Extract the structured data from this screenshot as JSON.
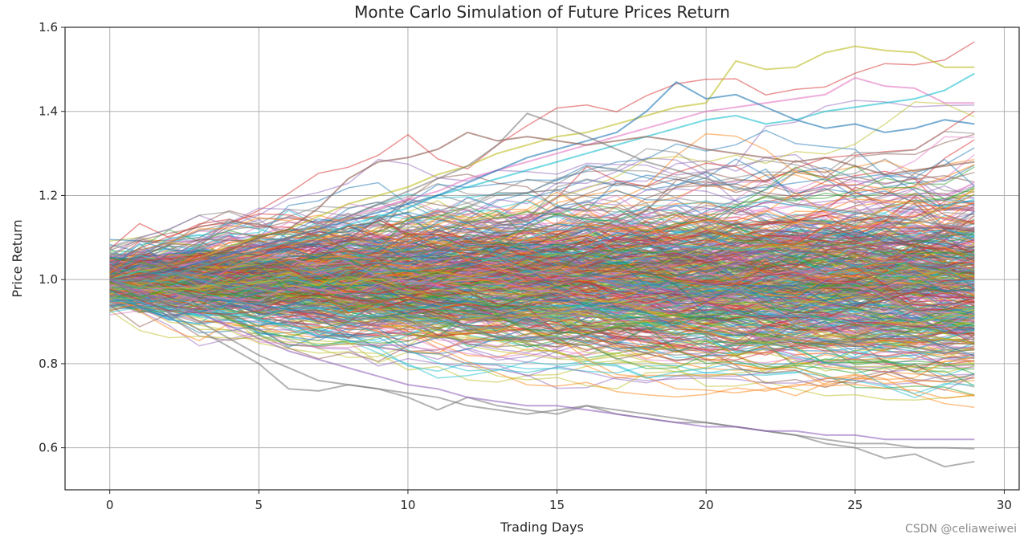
{
  "chart_data": {
    "type": "line",
    "title": "Monte Carlo Simulation of Future Prices Return",
    "xlabel": "Trading Days",
    "ylabel": "Price Return",
    "xlim": [
      -1.5,
      30.5
    ],
    "ylim": [
      0.5,
      1.6
    ],
    "xticks": [
      0,
      5,
      10,
      15,
      20,
      25,
      30
    ],
    "yticks": [
      0.6,
      0.8,
      1.0,
      1.2,
      1.4,
      1.6
    ],
    "x_tick_labels": [
      "0",
      "5",
      "10",
      "15",
      "20",
      "25",
      "30"
    ],
    "y_tick_labels": [
      "0.6",
      "0.8",
      "1.0",
      "1.2",
      "1.4",
      "1.6"
    ],
    "grid": true,
    "num_days": 30,
    "num_simulations": 500,
    "line_alpha": 0.5,
    "palette": [
      "#1f77b4",
      "#ff7f0e",
      "#2ca02c",
      "#d62728",
      "#9467bd",
      "#8c564b",
      "#e377c2",
      "#7f7f7f",
      "#bcbd22",
      "#17becf"
    ],
    "highlighted_series": [
      {
        "color": "#bcbd22",
        "values": [
          1.0,
          1.02,
          1.03,
          1.05,
          1.08,
          1.1,
          1.12,
          1.15,
          1.18,
          1.2,
          1.22,
          1.25,
          1.27,
          1.3,
          1.32,
          1.34,
          1.35,
          1.37,
          1.39,
          1.41,
          1.42,
          1.52,
          1.5,
          1.505,
          1.54,
          1.555,
          1.545,
          1.54,
          1.505,
          1.505
        ]
      },
      {
        "color": "#e377c2",
        "values": [
          1.0,
          1.01,
          1.03,
          1.04,
          1.06,
          1.08,
          1.1,
          1.12,
          1.15,
          1.17,
          1.19,
          1.21,
          1.24,
          1.26,
          1.28,
          1.3,
          1.32,
          1.34,
          1.36,
          1.38,
          1.4,
          1.41,
          1.42,
          1.43,
          1.44,
          1.48,
          1.46,
          1.455,
          1.42,
          1.42
        ]
      },
      {
        "color": "#17becf",
        "values": [
          1.0,
          1.02,
          1.01,
          1.03,
          1.05,
          1.07,
          1.09,
          1.1,
          1.13,
          1.15,
          1.17,
          1.2,
          1.22,
          1.24,
          1.26,
          1.28,
          1.3,
          1.32,
          1.34,
          1.36,
          1.38,
          1.39,
          1.37,
          1.38,
          1.4,
          1.41,
          1.42,
          1.43,
          1.45,
          1.49
        ]
      },
      {
        "color": "#1f77b4",
        "values": [
          1.0,
          1.01,
          1.02,
          1.04,
          1.06,
          1.08,
          1.1,
          1.12,
          1.14,
          1.16,
          1.18,
          1.2,
          1.23,
          1.26,
          1.29,
          1.31,
          1.33,
          1.35,
          1.4,
          1.47,
          1.43,
          1.44,
          1.41,
          1.38,
          1.36,
          1.37,
          1.35,
          1.36,
          1.38,
          1.37
        ]
      },
      {
        "color": "#8c564b",
        "values": [
          1.0,
          1.01,
          1.03,
          1.05,
          1.07,
          1.1,
          1.12,
          1.17,
          1.24,
          1.28,
          1.29,
          1.31,
          1.35,
          1.33,
          1.34,
          1.33,
          1.32,
          1.33,
          1.34,
          1.33,
          1.31,
          1.3,
          1.29,
          1.28,
          1.29,
          1.27,
          1.25,
          1.26,
          1.27,
          1.28
        ]
      },
      {
        "color": "#7f7f7f",
        "values": [
          1.0,
          1.0,
          1.01,
          1.03,
          1.05,
          1.07,
          1.1,
          1.12,
          1.15,
          1.18,
          1.21,
          1.24,
          1.27,
          1.32,
          1.395,
          1.37,
          1.34,
          1.31,
          1.28,
          1.26,
          1.24,
          1.22,
          1.2,
          1.18,
          1.17,
          1.16,
          1.15,
          1.14,
          1.13,
          1.12
        ]
      },
      {
        "color": "#7f7f7f",
        "values": [
          1.0,
          0.97,
          0.94,
          0.9,
          0.86,
          0.82,
          0.79,
          0.76,
          0.75,
          0.74,
          0.72,
          0.69,
          0.72,
          0.7,
          0.69,
          0.68,
          0.7,
          0.68,
          0.67,
          0.66,
          0.66,
          0.65,
          0.64,
          0.63,
          0.61,
          0.6,
          0.575,
          0.585,
          0.555,
          0.567
        ]
      },
      {
        "color": "#7f7f7f",
        "values": [
          1.0,
          0.96,
          0.92,
          0.88,
          0.84,
          0.8,
          0.74,
          0.735,
          0.75,
          0.74,
          0.73,
          0.72,
          0.7,
          0.69,
          0.68,
          0.69,
          0.7,
          0.69,
          0.68,
          0.67,
          0.66,
          0.65,
          0.64,
          0.63,
          0.62,
          0.61,
          0.61,
          0.6,
          0.6,
          0.598
        ]
      },
      {
        "color": "#9467bd",
        "values": [
          1.0,
          0.97,
          0.95,
          0.92,
          0.89,
          0.86,
          0.83,
          0.81,
          0.79,
          0.77,
          0.75,
          0.74,
          0.72,
          0.71,
          0.7,
          0.7,
          0.69,
          0.68,
          0.67,
          0.66,
          0.65,
          0.65,
          0.64,
          0.64,
          0.63,
          0.63,
          0.62,
          0.62,
          0.62,
          0.62
        ]
      }
    ]
  },
  "watermark": "CSDN @celiaweiwei"
}
